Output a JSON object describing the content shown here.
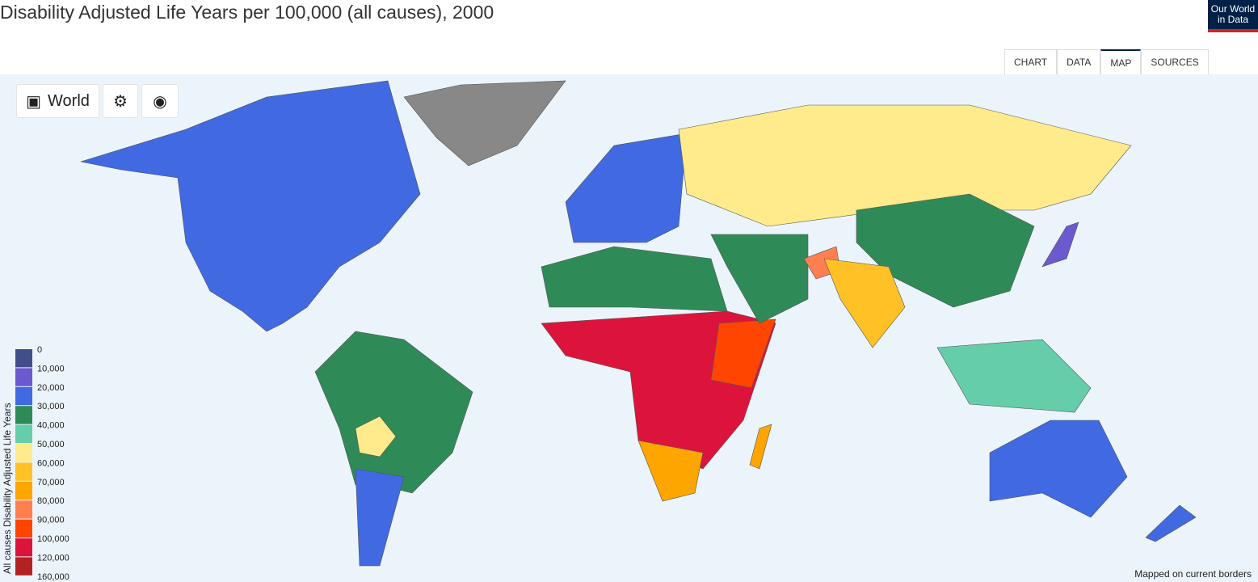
{
  "header": {
    "title": "Disability Adjusted Life Years per 100,000 (all causes), 2000",
    "logo": "Our World in Data"
  },
  "tabs": [
    "CHART",
    "DATA",
    "MAP",
    "SOURCES"
  ],
  "active_tab": "MAP",
  "controls": {
    "region": "World"
  },
  "legend": {
    "title": "All causes Disability Adjusted Life Years",
    "ticks": [
      0,
      {
        "value": 10000,
        "label": "10,000"
      },
      {
        "value": 20000,
        "label": "20,000"
      },
      {
        "value": 30000,
        "label": "30,000"
      },
      {
        "value": 40000,
        "label": "40,000"
      },
      {
        "value": 50000,
        "label": "50,000"
      },
      {
        "value": 60000,
        "label": "60,000"
      },
      {
        "value": 70000,
        "label": "70,000"
      },
      {
        "value": 80000,
        "label": "80,000"
      },
      {
        "value": 90000,
        "label": "90,000"
      },
      {
        "value": 100000,
        "label": "100,000"
      },
      {
        "value": 120000,
        "label": "120,000"
      },
      {
        "value": 160000,
        "label": "160,000"
      }
    ],
    "colors": [
      "#424e87",
      "#6a5acd",
      "#4169e1",
      "#2e8b57",
      "#66cdaa",
      "#ffeb8b",
      "#ffc125",
      "#ffa500",
      "#ff7f50",
      "#ff4500",
      "#dc143c",
      "#b22222"
    ]
  },
  "footer": {
    "note": "Mapped on current borders"
  }
}
